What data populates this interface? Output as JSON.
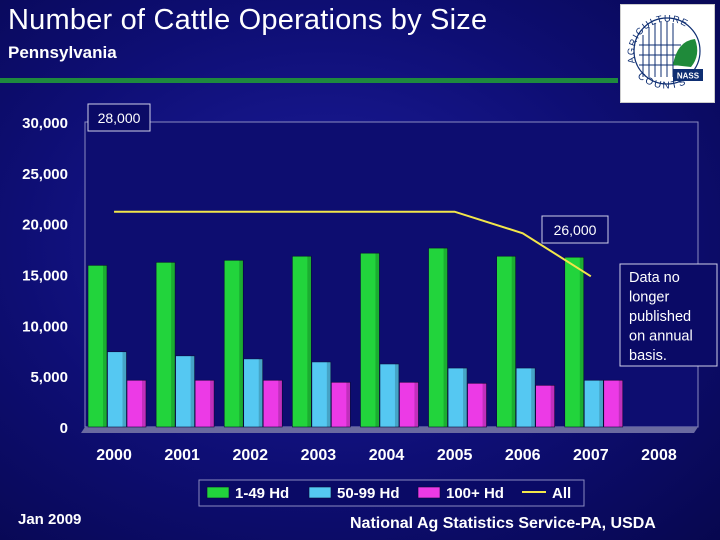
{
  "header": {
    "title": "Number of Cattle Operations by Size",
    "subtitle": "Pennsylvania"
  },
  "logo": {
    "top_text": "AGRICULTURE",
    "bottom_text": "COUNTS",
    "badge": "NASS"
  },
  "footer": {
    "date": "Jan 2009",
    "source": "National Ag Statistics Service-PA, USDA"
  },
  "colors": {
    "bar_1_49": "#22d43c",
    "bar_50_99": "#55c8f2",
    "bar_100_plus": "#ec3ae6",
    "line_all": "#f2e64a"
  },
  "chart_data": {
    "type": "bar",
    "title": "Number of Cattle Operations by Size",
    "subtitle": "Pennsylvania",
    "categories": [
      "2000",
      "2001",
      "2002",
      "2003",
      "2004",
      "2005",
      "2006",
      "2007",
      "2008"
    ],
    "ylim": [
      0,
      30000
    ],
    "yticks": [
      "30,000",
      "25,000",
      "20,000",
      "15,000",
      "10,000",
      "5,000",
      "0"
    ],
    "ytick_values": [
      30000,
      25000,
      20000,
      15000,
      10000,
      5000,
      0
    ],
    "series": [
      {
        "name": "1-49 Hd",
        "values": [
          15900,
          16200,
          16400,
          16800,
          17100,
          17600,
          16800,
          16700,
          null
        ]
      },
      {
        "name": "50-99 Hd",
        "values": [
          7400,
          7000,
          6700,
          6400,
          6200,
          5800,
          5800,
          4600,
          null
        ]
      },
      {
        "name": "100+ Hd",
        "values": [
          4600,
          4600,
          4600,
          4400,
          4400,
          4300,
          4100,
          4600,
          null
        ]
      }
    ],
    "line": {
      "name": "All",
      "values": [
        28000,
        28000,
        28000,
        28000,
        28000,
        28000,
        27400,
        26200,
        null
      ],
      "secondary_ylim": [
        22000,
        30500
      ]
    },
    "annotations": {
      "start_label": "28,000",
      "end_label": "26,000",
      "note": [
        "Data no",
        "longer",
        "published",
        "on annual",
        "basis."
      ]
    },
    "legend": [
      "1-49 Hd",
      "50-99 Hd",
      "100+ Hd",
      "All"
    ],
    "legend_position": "bottom"
  }
}
